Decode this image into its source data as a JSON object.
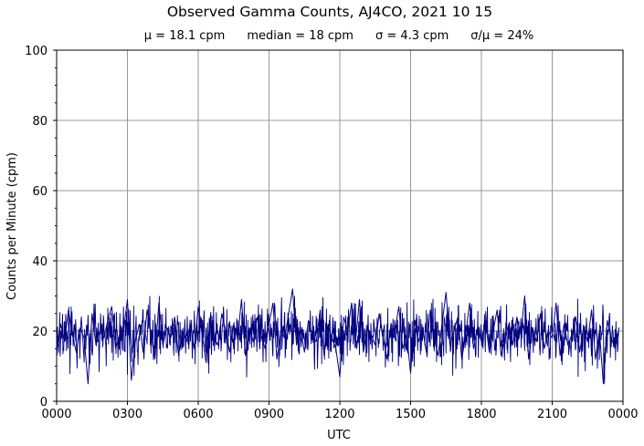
{
  "chart_data": {
    "type": "line",
    "title": "Observed Gamma Counts, AJ4CO, 2021 10 15",
    "subtitle": [
      "μ = 18.1 cpm",
      "median = 18 cpm",
      "σ = 4.3 cpm",
      "σ/μ = 24%"
    ],
    "xlabel": "UTC",
    "ylabel": "Counts per Minute (cpm)",
    "xlim_minutes": [
      0,
      1440
    ],
    "ylim": [
      0,
      100
    ],
    "yticks": [
      "0",
      "20",
      "40",
      "60",
      "80",
      "100"
    ],
    "xticks": [
      "0000",
      "0300",
      "0600",
      "0900",
      "1200",
      "1500",
      "1800",
      "2100",
      "0000"
    ],
    "grid": true,
    "line_color": "#000080",
    "sample_interval_minutes": 10,
    "series": [
      {
        "values": [
          15,
          22,
          17,
          26,
          19,
          14,
          21,
          18,
          5,
          25,
          16,
          20,
          18,
          23,
          27,
          15,
          19,
          20,
          29,
          6,
          17,
          22,
          14,
          26,
          19,
          12,
          28,
          16,
          21,
          18,
          24,
          13,
          20,
          17,
          22,
          15,
          27,
          19,
          11,
          23,
          18,
          16,
          25,
          20,
          14,
          22,
          18,
          29,
          13,
          21,
          17,
          24,
          19,
          15,
          22,
          28,
          12,
          20,
          18,
          25,
          32,
          16,
          21,
          14,
          23,
          19,
          17,
          26,
          13,
          22,
          18,
          15,
          7,
          24,
          20,
          28,
          17,
          29,
          14,
          21,
          19,
          16,
          25,
          18,
          12,
          22,
          20,
          27,
          15,
          19,
          8,
          23,
          17,
          21,
          14,
          26,
          18,
          13,
          22,
          31,
          16,
          20,
          24,
          12,
          19,
          28,
          15,
          21,
          17,
          23,
          14,
          20,
          26,
          13,
          18,
          22,
          16,
          24,
          19,
          30,
          12,
          21,
          17,
          25,
          15,
          20,
          18,
          28,
          13,
          22,
          16,
          19,
          24,
          14,
          21,
          17,
          26,
          12,
          20,
          5,
          23,
          18,
          15,
          21
        ]
      }
    ]
  }
}
